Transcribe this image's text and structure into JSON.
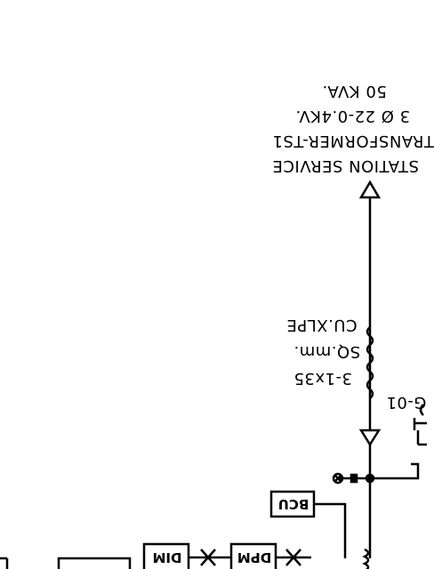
{
  "transformer": {
    "line1": "STATION SERVICE",
    "line2": "TRANSFORMER-TS1",
    "line3": "3 Ø 22-0.4KV.",
    "line4": "50 KVA."
  },
  "cable": {
    "line1": "CU.XLPE",
    "line2": "SQ.mm.",
    "line3": "3-1x35"
  },
  "partial_label": "G-01",
  "boxes": {
    "bcu": "BCU",
    "dpm": "DPM",
    "dim": "DIM"
  }
}
